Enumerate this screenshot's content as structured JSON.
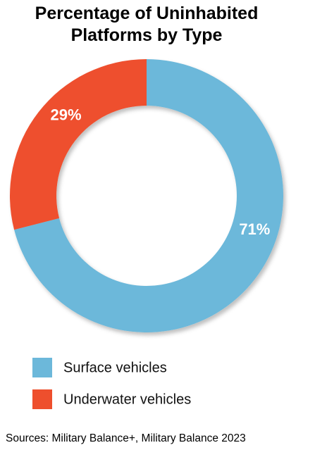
{
  "chart_data": {
    "type": "donut",
    "title": "Percentage of Uninhabited Platforms by Type",
    "categories": [
      "Surface vehicles",
      "Underwater vehicles"
    ],
    "values": [
      71,
      29
    ],
    "value_labels": [
      "71%",
      "29%"
    ],
    "colors": [
      "#6cb8da",
      "#ee4f2d"
    ],
    "source": "Sources: Military Balance+, Military Balance 2023"
  }
}
